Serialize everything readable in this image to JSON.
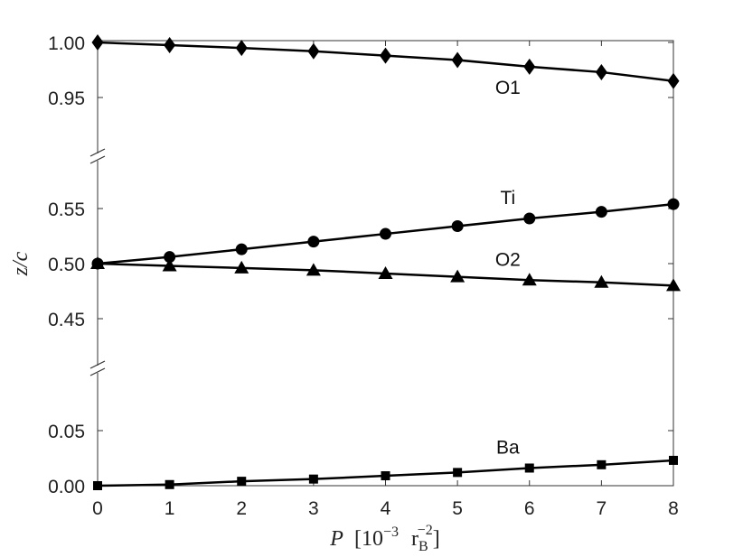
{
  "chart_data": {
    "type": "line",
    "x": [
      0,
      1,
      2,
      3,
      4,
      5,
      6,
      7,
      8
    ],
    "xticks": [
      "0",
      "1",
      "2",
      "3",
      "4",
      "5",
      "6",
      "7",
      "8"
    ],
    "xlim": [
      0,
      8
    ],
    "xlabel": {
      "var": "P",
      "open": "[10",
      "exp": "−3",
      "unit": "r",
      "sub": "B",
      "unitexp": "−2",
      "close": "]"
    },
    "ylabel": "z/c",
    "y_axis_broken": true,
    "y_segments": [
      {
        "ylim": [
          0.94,
          1.005
        ],
        "ticks": [
          "1.00",
          "0.95"
        ],
        "tick_values": [
          1.0,
          0.95
        ]
      },
      {
        "ylim": [
          0.44,
          0.575
        ],
        "ticks": [
          "0.55",
          "0.50",
          "0.45"
        ],
        "tick_values": [
          0.55,
          0.5,
          0.45
        ]
      },
      {
        "ylim": [
          0.0,
          0.075
        ],
        "ticks": [
          "0.05",
          "0.00"
        ],
        "tick_values": [
          0.05,
          0.0
        ]
      }
    ],
    "series": [
      {
        "name": "O1",
        "marker": "diamond",
        "segment": 0,
        "values": [
          1.0,
          0.9975,
          0.995,
          0.992,
          0.988,
          0.984,
          0.978,
          0.973,
          0.965
        ]
      },
      {
        "name": "Ti",
        "marker": "circle",
        "segment": 1,
        "values": [
          0.5,
          0.506,
          0.513,
          0.52,
          0.527,
          0.534,
          0.541,
          0.547,
          0.554
        ]
      },
      {
        "name": "O2",
        "marker": "triangle",
        "segment": 1,
        "values": [
          0.5,
          0.498,
          0.496,
          0.494,
          0.491,
          0.488,
          0.485,
          0.483,
          0.48
        ]
      },
      {
        "name": "Ba",
        "marker": "square",
        "segment": 2,
        "values": [
          0.0,
          0.001,
          0.004,
          0.006,
          0.009,
          0.012,
          0.016,
          0.019,
          0.023
        ]
      }
    ],
    "colors": {
      "line": "#000000",
      "axis": "#333333"
    }
  }
}
